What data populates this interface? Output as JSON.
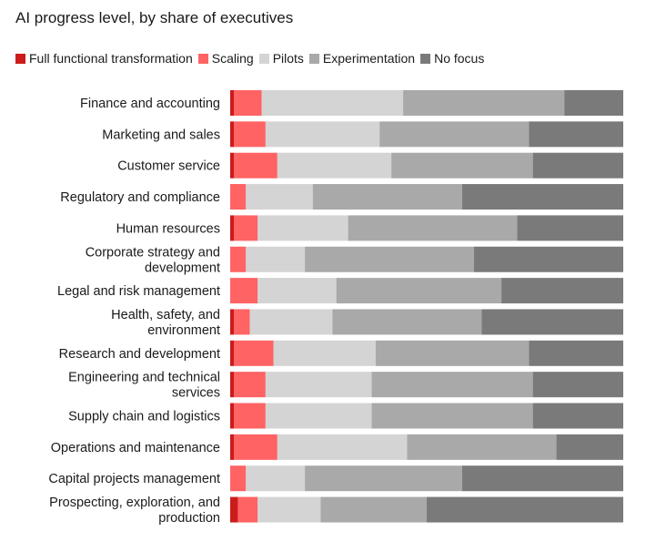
{
  "chart_data": {
    "type": "bar",
    "orientation": "horizontal",
    "stacked": true,
    "title": "AI progress level, by share of executives",
    "legend_position": "top-left",
    "xlim": [
      0,
      100
    ],
    "categories": [
      "Finance and accounting",
      "Marketing and sales",
      "Customer service",
      "Regulatory and compliance",
      "Human resources",
      "Corporate strategy and development",
      "Legal and risk management",
      "Health, safety, and environment",
      "Research and development",
      "Engineering and technical services",
      "Supply chain and logistics",
      "Operations and maintenance",
      "Capital projects management",
      "Prospecting, exploration, and production"
    ],
    "category_lines": [
      [
        "Finance and accounting"
      ],
      [
        "Marketing and sales"
      ],
      [
        "Customer service"
      ],
      [
        "Regulatory and compliance"
      ],
      [
        "Human resources"
      ],
      [
        "Corporate strategy and",
        "development"
      ],
      [
        "Legal and risk management"
      ],
      [
        "Health, safety, and",
        "environment"
      ],
      [
        "Research and development"
      ],
      [
        "Engineering and technical",
        "services"
      ],
      [
        "Supply chain and logistics"
      ],
      [
        "Operations and maintenance"
      ],
      [
        "Capital projects management"
      ],
      [
        "Prospecting, exploration, and",
        "production"
      ]
    ],
    "series": [
      {
        "name": "Full functional transformation",
        "color": "#cc1b1b",
        "values": [
          1,
          1,
          1,
          0,
          1,
          0,
          0,
          1,
          1,
          1,
          1,
          1,
          0,
          2
        ]
      },
      {
        "name": "Scaling",
        "color": "#ff6363",
        "values": [
          7,
          8,
          11,
          4,
          6,
          4,
          7,
          4,
          10,
          8,
          8,
          11,
          4,
          5
        ]
      },
      {
        "name": "Pilots",
        "color": "#d4d4d4",
        "values": [
          36,
          29,
          29,
          17,
          23,
          15,
          20,
          21,
          26,
          27,
          27,
          33,
          15,
          16
        ]
      },
      {
        "name": "Experimentation",
        "color": "#a9a9a9",
        "values": [
          41,
          38,
          36,
          38,
          43,
          43,
          42,
          38,
          39,
          41,
          41,
          38,
          40,
          27
        ]
      },
      {
        "name": "No focus",
        "color": "#7a7a7a",
        "values": [
          15,
          24,
          23,
          41,
          27,
          38,
          31,
          36,
          24,
          23,
          23,
          17,
          41,
          50
        ]
      }
    ]
  }
}
